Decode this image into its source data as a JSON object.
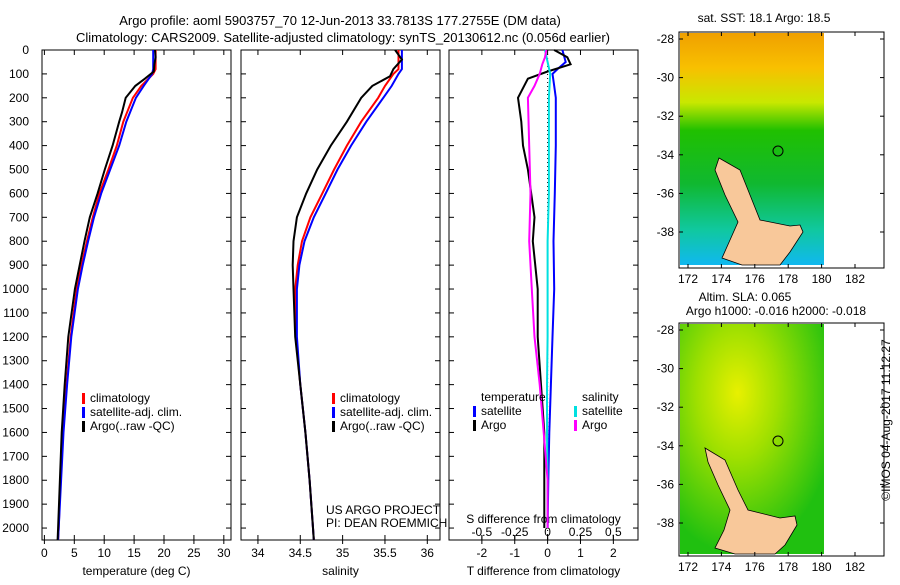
{
  "chart_data": {
    "type": "line",
    "title": "Argo profile: aoml 5903757_70 12-Jun-2013 33.7813S 177.2755E (DM data)",
    "subtitle": "Climatology: CARS2009. Satellite-adjusted climatology: synTS_20130612.nc (0.056d earlier)",
    "depth_ticks": [
      0,
      100,
      200,
      300,
      400,
      500,
      600,
      700,
      800,
      900,
      1000,
      1100,
      1200,
      1300,
      1400,
      1500,
      1600,
      1700,
      1800,
      1900,
      2000
    ],
    "depth_range": [
      0,
      2050
    ],
    "panels": [
      {
        "xlabel": "temperature (deg C)",
        "xlim": [
          -0.4,
          31.2
        ],
        "xticks": [
          0,
          5,
          10,
          15,
          20,
          25,
          30
        ],
        "legend": [
          "climatology",
          "satellite-adj. clim.",
          "Argo(..raw -QC)"
        ],
        "series": [
          {
            "name": "climatology",
            "color": "#ff0000",
            "depth": [
              0,
              80,
              100,
              150,
              200,
              300,
              400,
              500,
              600,
              700,
              800,
              900,
              1000,
              1200,
              1400,
              1600,
              1800,
              2000,
              2050
            ],
            "values": [
              18.6,
              18.6,
              18.2,
              16.2,
              14.8,
              13.2,
              12.1,
              10.7,
              9.2,
              8.1,
              7.1,
              6.2,
              5.4,
              4.4,
              3.7,
              3.1,
              2.7,
              2.4,
              2.3
            ]
          },
          {
            "name": "satellite-adj. clim.",
            "color": "#0000ff",
            "depth": [
              0,
              80,
              100,
              150,
              200,
              300,
              400,
              500,
              600,
              700,
              800,
              900,
              1000,
              1200,
              1400,
              1600,
              1800,
              2000,
              2050
            ],
            "values": [
              18.2,
              18.2,
              18.0,
              16.6,
              15.3,
              13.7,
              12.5,
              11.0,
              9.5,
              8.3,
              7.3,
              6.4,
              5.6,
              4.5,
              3.8,
              3.2,
              2.8,
              2.4,
              2.3
            ]
          },
          {
            "name": "Argo",
            "color": "#000000",
            "depth": [
              0,
              30,
              60,
              90,
              120,
              150,
              200,
              260,
              300,
              400,
              500,
              600,
              700,
              800,
              900,
              1000,
              1200,
              1400,
              1600,
              1800,
              2000,
              2050
            ],
            "values": [
              18.5,
              18.6,
              18.4,
              18.3,
              16.8,
              15.2,
              13.6,
              13.0,
              12.5,
              11.4,
              10.1,
              8.9,
              7.6,
              6.7,
              5.9,
              5.1,
              4.0,
              3.4,
              2.9,
              2.6,
              2.3,
              2.2
            ]
          }
        ]
      },
      {
        "xlabel": "salinity",
        "xlim": [
          33.8,
          36.15
        ],
        "xticks": [
          34,
          34.5,
          35,
          35.5,
          36
        ],
        "legend": [
          "climatology",
          "satellite-adj. clim.",
          "Argo(..raw -QC)"
        ],
        "annotation": [
          "US ARGO PROJECT",
          "PI: DEAN ROEMMICH"
        ],
        "series": [
          {
            "name": "climatology",
            "color": "#ff0000",
            "depth": [
              0,
              80,
              100,
              150,
              200,
              300,
              400,
              500,
              600,
              700,
              800,
              900,
              1000,
              1200,
              1400,
              1600,
              1800,
              2000,
              2050
            ],
            "values": [
              35.66,
              35.66,
              35.6,
              35.5,
              35.42,
              35.22,
              35.05,
              34.9,
              34.76,
              34.62,
              34.52,
              34.47,
              34.44,
              34.45,
              34.5,
              34.56,
              34.61,
              34.65,
              34.66
            ]
          },
          {
            "name": "satellite-adj. clim.",
            "color": "#0000ff",
            "depth": [
              0,
              80,
              100,
              150,
              200,
              300,
              400,
              500,
              600,
              700,
              800,
              900,
              1000,
              1200,
              1400,
              1600,
              1800,
              2000,
              2050
            ],
            "values": [
              35.7,
              35.7,
              35.66,
              35.58,
              35.48,
              35.28,
              35.1,
              34.94,
              34.8,
              34.66,
              34.55,
              34.49,
              34.46,
              34.46,
              34.5,
              34.56,
              34.61,
              34.65,
              34.66
            ]
          },
          {
            "name": "Argo",
            "color": "#000000",
            "depth": [
              0,
              40,
              80,
              110,
              150,
              200,
              300,
              400,
              500,
              600,
              700,
              800,
              900,
              1000,
              1200,
              1400,
              1600,
              1800,
              2000,
              2050
            ],
            "values": [
              35.62,
              35.7,
              35.6,
              35.56,
              35.35,
              35.22,
              35.05,
              34.86,
              34.7,
              34.57,
              34.46,
              34.42,
              34.41,
              34.42,
              34.44,
              34.5,
              34.56,
              34.61,
              34.65,
              34.66
            ]
          }
        ]
      },
      {
        "xlabel": "T difference from climatology",
        "xlabel2": "S difference from climatology",
        "xlim": [
          -3.0,
          2.75
        ],
        "xticks": [
          -2,
          -1,
          0,
          1,
          2
        ],
        "xticks2": [
          -0.5,
          -0.25,
          0,
          0.25,
          0.5
        ],
        "xtick2_labels": [
          "-0.5",
          "-0.25",
          "0",
          "0.25",
          "0.5"
        ],
        "s_scale": 4,
        "legend": {
          "temperature": "temperature",
          "salinity": "salinity",
          "items": [
            "satellite",
            "Argo",
            "satellite",
            "Argo"
          ]
        },
        "series": [
          {
            "name": "temperature satellite",
            "axis": "T",
            "color": "#0000ff",
            "depth": [
              0,
              50,
              80,
              100,
              150,
              200,
              400,
              600,
              800,
              1000,
              1200,
              1400,
              1600,
              1800,
              2000
            ],
            "values": [
              0.45,
              0.55,
              0.3,
              0.15,
              0.2,
              0.25,
              0.25,
              0.22,
              0.18,
              0.2,
              0.15,
              0.1,
              0.05,
              0.02,
              0.0
            ]
          },
          {
            "name": "temperature Argo",
            "axis": "T",
            "color": "#000000",
            "depth": [
              0,
              30,
              60,
              90,
              120,
              200,
              300,
              400,
              500,
              600,
              700,
              800,
              1000,
              1200,
              1400,
              1600,
              1800,
              2000
            ],
            "values": [
              0.2,
              0.6,
              0.7,
              0.0,
              -0.6,
              -0.9,
              -0.8,
              -0.75,
              -0.6,
              -0.5,
              -0.4,
              -0.45,
              -0.3,
              -0.3,
              -0.2,
              -0.1,
              -0.1,
              -0.1
            ]
          },
          {
            "name": "salinity satellite",
            "axis": "S",
            "color": "#00e0e0",
            "depth": [
              0,
              50,
              100,
              200,
              400,
              600,
              800,
              1000,
              1200,
              1400,
              1600,
              1800,
              2000
            ],
            "values": [
              -0.02,
              0.0,
              0.02,
              0.01,
              0.01,
              0.01,
              0.0,
              0.0,
              0.0,
              -0.005,
              -0.005,
              0.0,
              0.0
            ]
          },
          {
            "name": "salinity Argo",
            "axis": "S",
            "color": "#ff00ff",
            "depth": [
              0,
              30,
              60,
              100,
              150,
              200,
              400,
              600,
              800,
              1000,
              1200,
              1400,
              1600,
              1800,
              2000
            ],
            "values": [
              -0.01,
              -0.02,
              -0.04,
              -0.06,
              -0.1,
              -0.15,
              -0.14,
              -0.13,
              -0.14,
              -0.12,
              -0.1,
              -0.06,
              -0.03,
              0.0,
              0.0
            ]
          }
        ]
      }
    ],
    "maps": [
      {
        "title": "sat. SST: 18.1 Argo: 18.5",
        "yticks": [
          "-28",
          "-30",
          "-32",
          "-34",
          "-36",
          "-38"
        ],
        "xticks": [
          "172",
          "174",
          "176",
          "178",
          "180",
          "182"
        ],
        "float_lon": 177.28,
        "float_lat": -33.78
      },
      {
        "title": "Altim. SLA: 0.065",
        "title2": "Argo h1000: -0.016 h2000: -0.018",
        "yticks": [
          "-28",
          "-30",
          "-32",
          "-34",
          "-36",
          "-38"
        ],
        "xticks": [
          "172",
          "174",
          "176",
          "178",
          "180",
          "182"
        ],
        "float_lon": 177.28,
        "float_lat": -33.78
      }
    ],
    "credit": "©IMOS 04-Aug-2017 11:12:27"
  }
}
